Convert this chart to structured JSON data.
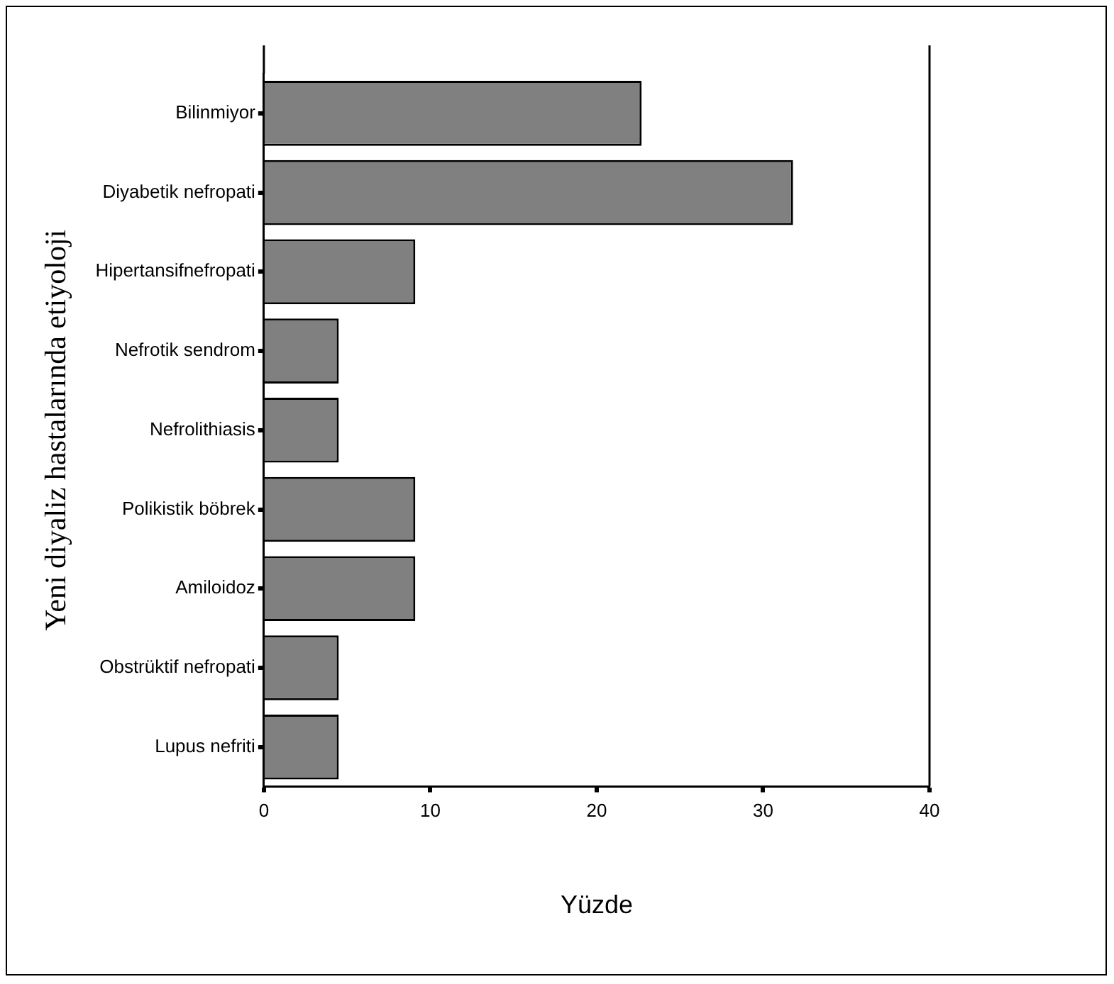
{
  "chart_data": {
    "type": "bar",
    "orientation": "horizontal",
    "xlabel": "Yüzde",
    "ylabel": "Yeni diyaliz hastalarında etiyoloji",
    "categories": [
      "Bilinmiyor",
      "Diyabetik nefropati",
      "Hipertansifnefropati",
      "Nefrotik sendrom",
      "Nefrolithiasis",
      "Polikistik böbrek",
      "Amiloidoz",
      "Obstrüktif nefropati",
      "Lupus nefriti"
    ],
    "values": [
      22.7,
      31.8,
      9.1,
      4.5,
      4.5,
      9.1,
      9.1,
      4.5,
      4.5
    ],
    "color": "#808080",
    "xlim": [
      0,
      40
    ],
    "xticks": [
      0,
      10,
      20,
      30,
      40
    ],
    "grid": false,
    "legend": false
  }
}
